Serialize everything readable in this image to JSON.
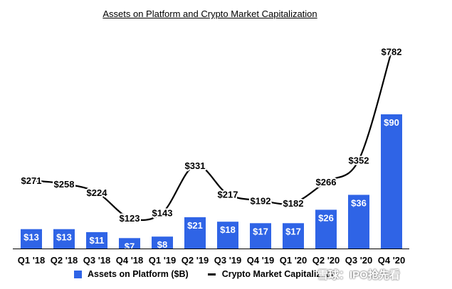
{
  "chart_data": {
    "type": "bar+line",
    "title": "Assets on Platform and Crypto Market Capitalization",
    "categories": [
      "Q1 '18",
      "Q2 '18",
      "Q3 '18",
      "Q4 '18",
      "Q1 '19",
      "Q2 '19",
      "Q3 '19",
      "Q4 '19",
      "Q1 '20",
      "Q2 '20",
      "Q3 '20",
      "Q4 '20"
    ],
    "series": [
      {
        "name": "Assets on Platform ($B)",
        "type": "bar",
        "color": "#2f64e6",
        "values": [
          13,
          13,
          11,
          7,
          8,
          21,
          18,
          17,
          17,
          26,
          36,
          90
        ],
        "labels": [
          "$13",
          "$13",
          "$11",
          "$7",
          "$8",
          "$21",
          "$18",
          "$17",
          "$17",
          "$26",
          "$36",
          "$90"
        ]
      },
      {
        "name": "Crypto Market Capitalization ($B)",
        "type": "line",
        "color": "#000000",
        "values": [
          271,
          258,
          224,
          123,
          143,
          331,
          217,
          192,
          182,
          266,
          352,
          782
        ],
        "labels": [
          "$271",
          "$258",
          "$224",
          "$123",
          "$143",
          "$331",
          "$217",
          "$192",
          "$182",
          "$266",
          "$352",
          "$782"
        ]
      }
    ],
    "legend_position": "bottom"
  },
  "legend": {
    "bar_label": "Assets on Platform ($B)",
    "line_label": "Crypto Market Capitalizatio"
  },
  "watermark": "雪球：IPO抢先看"
}
